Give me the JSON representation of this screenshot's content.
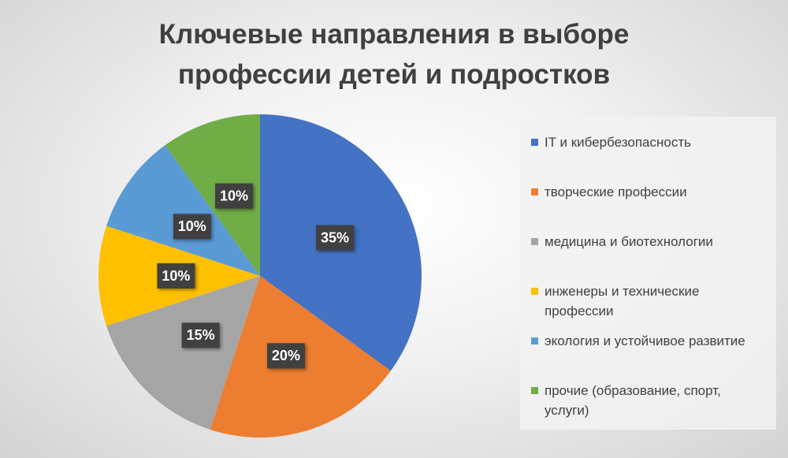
{
  "chart_data": {
    "type": "pie",
    "title": "Ключевые направления в выборе профессии детей и подростков",
    "categories": [
      "IT и кибербезопасность",
      "творческие профессии",
      "медицина и биотехнологии",
      "инженеры и технические профессии",
      "экология и устойчивое развитие",
      "прочие (образование, спорт, услуги)"
    ],
    "values": [
      35,
      20,
      15,
      10,
      10,
      10
    ],
    "value_labels": [
      "35%",
      "20%",
      "15%",
      "10%",
      "10%",
      "10%"
    ],
    "colors": [
      "#4472c4",
      "#ed7d31",
      "#a5a5a5",
      "#ffc000",
      "#5b9bd5",
      "#70ad47"
    ],
    "legend": "right"
  }
}
